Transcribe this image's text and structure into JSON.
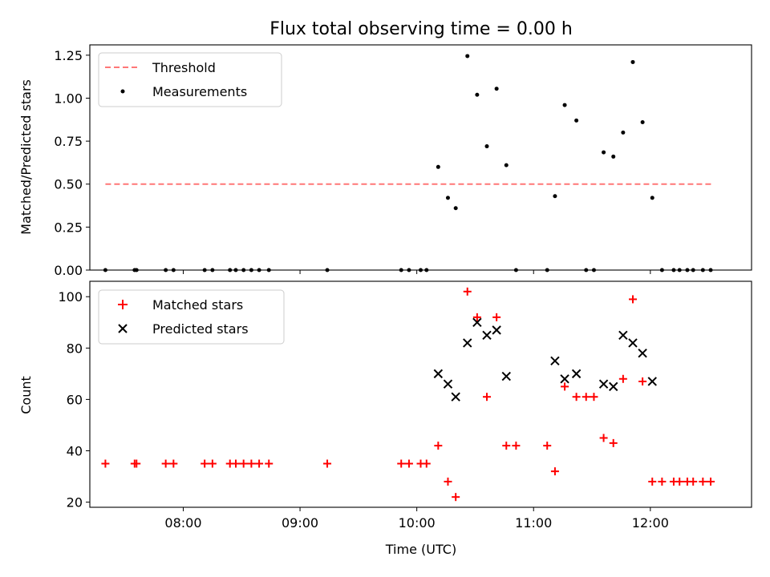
{
  "chart_data": [
    {
      "type": "scatter",
      "title": "Flux total observing time = 0.00 h",
      "xlabel": "",
      "ylabel": "Matched/Predicted stars",
      "xlim": [
        "07:12",
        "12:52"
      ],
      "ylim": [
        0,
        1.31
      ],
      "yticks": [
        0.0,
        0.25,
        0.5,
        0.75,
        1.0,
        1.25
      ],
      "ytick_labels": [
        "0.00",
        "0.25",
        "0.50",
        "0.75",
        "1.00",
        "1.25"
      ],
      "xticks": [
        "08:00",
        "09:00",
        "10:00",
        "11:00",
        "12:00"
      ],
      "grid": false,
      "legend_position": "top-left",
      "threshold": {
        "name": "Threshold",
        "value": 0.5,
        "x_start": "07:20",
        "x_end": "12:32",
        "color": "#ff7777",
        "style": "dashed"
      },
      "series": [
        {
          "name": "Measurements",
          "marker": "dot",
          "color": "#000000",
          "points": [
            [
              "07:20",
              0
            ],
            [
              "07:35",
              0
            ],
            [
              "07:36",
              0
            ],
            [
              "07:51",
              0
            ],
            [
              "07:55",
              0
            ],
            [
              "08:11",
              0
            ],
            [
              "08:15",
              0
            ],
            [
              "08:24",
              0
            ],
            [
              "08:27",
              0
            ],
            [
              "08:31",
              0
            ],
            [
              "08:35",
              0
            ],
            [
              "08:39",
              0
            ],
            [
              "08:44",
              0
            ],
            [
              "09:14",
              0
            ],
            [
              "09:52",
              0
            ],
            [
              "09:56",
              0
            ],
            [
              "10:02",
              0
            ],
            [
              "10:05",
              0
            ],
            [
              "10:11",
              0.6
            ],
            [
              "10:16",
              0.42
            ],
            [
              "10:20",
              0.36
            ],
            [
              "10:26",
              1.245
            ],
            [
              "10:31",
              1.02
            ],
            [
              "10:36",
              0.72
            ],
            [
              "10:41",
              1.055
            ],
            [
              "10:46",
              0.61
            ],
            [
              "10:51",
              0
            ],
            [
              "11:07",
              0
            ],
            [
              "11:11",
              0.43
            ],
            [
              "11:16",
              0.96
            ],
            [
              "11:22",
              0.87
            ],
            [
              "11:27",
              0
            ],
            [
              "11:31",
              0
            ],
            [
              "11:36",
              0.685
            ],
            [
              "11:41",
              0.66
            ],
            [
              "11:46",
              0.8
            ],
            [
              "11:51",
              1.21
            ],
            [
              "11:56",
              0.86
            ],
            [
              "12:01",
              0.42
            ],
            [
              "12:06",
              0
            ],
            [
              "12:12",
              0
            ],
            [
              "12:15",
              0
            ],
            [
              "12:19",
              0
            ],
            [
              "12:22",
              0
            ],
            [
              "12:27",
              0
            ],
            [
              "12:31",
              0
            ]
          ]
        }
      ]
    },
    {
      "type": "scatter",
      "title": "",
      "xlabel": "Time (UTC)",
      "ylabel": "Count",
      "xlim": [
        "07:12",
        "12:52"
      ],
      "ylim": [
        18,
        106
      ],
      "yticks": [
        20,
        40,
        60,
        80,
        100
      ],
      "ytick_labels": [
        "20",
        "40",
        "60",
        "80",
        "100"
      ],
      "xticks": [
        "08:00",
        "09:00",
        "10:00",
        "11:00",
        "12:00"
      ],
      "xtick_labels": [
        "08:00",
        "09:00",
        "10:00",
        "11:00",
        "12:00"
      ],
      "grid": false,
      "legend_position": "top-left",
      "series": [
        {
          "name": "Matched stars",
          "marker": "plus",
          "color": "#ff0000",
          "points": [
            [
              "07:20",
              35
            ],
            [
              "07:35",
              35
            ],
            [
              "07:36",
              35
            ],
            [
              "07:51",
              35
            ],
            [
              "07:55",
              35
            ],
            [
              "08:11",
              35
            ],
            [
              "08:15",
              35
            ],
            [
              "08:24",
              35
            ],
            [
              "08:27",
              35
            ],
            [
              "08:31",
              35
            ],
            [
              "08:35",
              35
            ],
            [
              "08:39",
              35
            ],
            [
              "08:44",
              35
            ],
            [
              "09:14",
              35
            ],
            [
              "09:52",
              35
            ],
            [
              "09:56",
              35
            ],
            [
              "10:02",
              35
            ],
            [
              "10:05",
              35
            ],
            [
              "10:11",
              42
            ],
            [
              "10:16",
              28
            ],
            [
              "10:20",
              22
            ],
            [
              "10:26",
              102
            ],
            [
              "10:31",
              92
            ],
            [
              "10:36",
              61
            ],
            [
              "10:41",
              92
            ],
            [
              "10:46",
              42
            ],
            [
              "10:51",
              42
            ],
            [
              "11:07",
              42
            ],
            [
              "11:11",
              32
            ],
            [
              "11:16",
              65
            ],
            [
              "11:22",
              61
            ],
            [
              "11:27",
              61
            ],
            [
              "11:31",
              61
            ],
            [
              "11:36",
              45
            ],
            [
              "11:41",
              43
            ],
            [
              "11:46",
              68
            ],
            [
              "11:51",
              99
            ],
            [
              "11:56",
              67
            ],
            [
              "12:01",
              28
            ],
            [
              "12:06",
              28
            ],
            [
              "12:12",
              28
            ],
            [
              "12:15",
              28
            ],
            [
              "12:19",
              28
            ],
            [
              "12:22",
              28
            ],
            [
              "12:27",
              28
            ],
            [
              "12:31",
              28
            ]
          ]
        },
        {
          "name": "Predicted stars",
          "marker": "x",
          "color": "#000000",
          "points": [
            [
              "10:11",
              70
            ],
            [
              "10:16",
              66
            ],
            [
              "10:20",
              61
            ],
            [
              "10:26",
              82
            ],
            [
              "10:31",
              90
            ],
            [
              "10:36",
              85
            ],
            [
              "10:41",
              87
            ],
            [
              "10:46",
              69
            ],
            [
              "11:11",
              75
            ],
            [
              "11:16",
              68
            ],
            [
              "11:22",
              70
            ],
            [
              "11:36",
              66
            ],
            [
              "11:41",
              65
            ],
            [
              "11:46",
              85
            ],
            [
              "11:51",
              82
            ],
            [
              "11:56",
              78
            ],
            [
              "12:01",
              67
            ]
          ]
        }
      ]
    }
  ]
}
